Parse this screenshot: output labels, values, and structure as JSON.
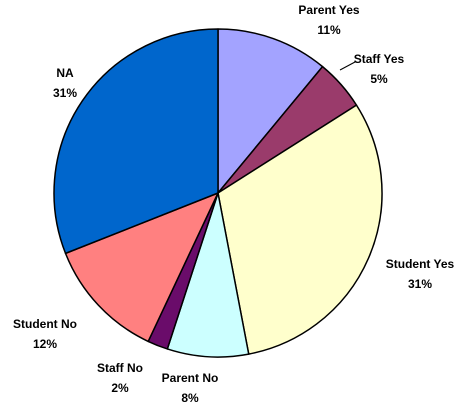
{
  "chart_data": {
    "type": "pie",
    "title": "",
    "start_angle_deg": 0,
    "direction": "clockwise",
    "legend": "none",
    "slices": [
      {
        "name": "Parent Yes",
        "value": 11,
        "label_pct": "11%",
        "color": "#a3a3ff"
      },
      {
        "name": "Staff Yes",
        "value": 5,
        "label_pct": "5%",
        "color": "#9a3b6b"
      },
      {
        "name": "Student Yes",
        "value": 31,
        "label_pct": "31%",
        "color": "#ffffcc"
      },
      {
        "name": "Parent No",
        "value": 8,
        "label_pct": "8%",
        "color": "#ccffff"
      },
      {
        "name": "Staff No",
        "value": 2,
        "label_pct": "2%",
        "color": "#6a0c6a"
      },
      {
        "name": "Student No",
        "value": 12,
        "label_pct": "12%",
        "color": "#ff8080"
      },
      {
        "name": "NA",
        "value": 31,
        "label_pct": "31%",
        "color": "#0066cc"
      }
    ]
  }
}
